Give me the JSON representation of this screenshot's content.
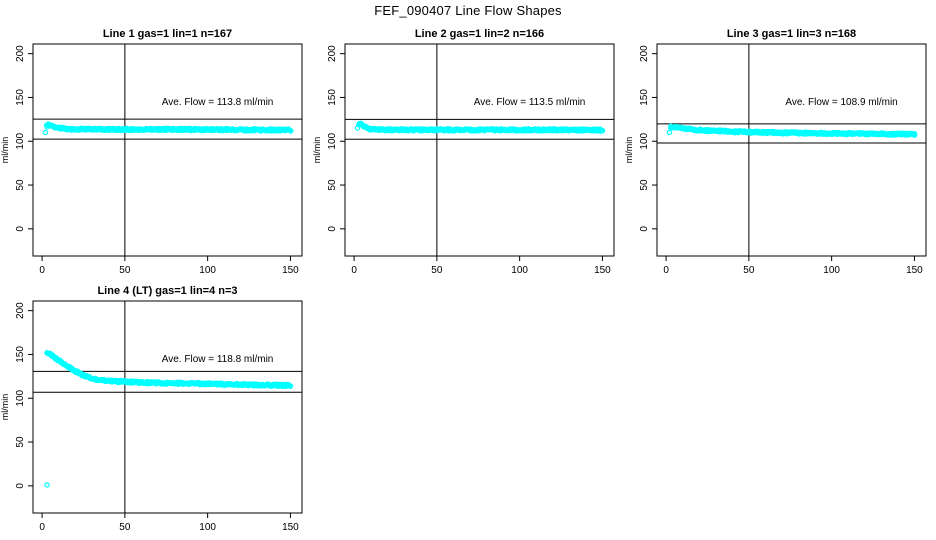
{
  "figure": {
    "title": "FEF_090407  Line Flow Shapes",
    "background": "#ffffff",
    "text_color": "#000000"
  },
  "chart_data": [
    {
      "type": "scatter",
      "title": "Line 1 gas=1 lin=1 n=167",
      "n": 167,
      "annotation": "Ave. Flow =  113.8  ml/min",
      "annotation_xy": [
        106,
        145
      ],
      "avg_flow_ml_min": 113.8,
      "xlabel": "",
      "ylabel": "ml/min",
      "x_ticks": [
        0,
        50,
        100,
        150
      ],
      "y_ticks": [
        0,
        50,
        100,
        150,
        200
      ],
      "xlim": [
        -5.5,
        157
      ],
      "ylim": [
        -31,
        211
      ],
      "grid": false,
      "vline_x": 50,
      "ref_lines_y": [
        125.2,
        102.4
      ],
      "point_color": "#00ffff",
      "line_color": "#000000",
      "profile": [
        [
          3,
          117.5
        ],
        [
          4,
          119
        ],
        [
          5,
          118.5
        ],
        [
          6,
          118
        ],
        [
          8,
          116
        ],
        [
          10,
          115
        ],
        [
          15,
          114
        ],
        [
          20,
          113.8
        ],
        [
          30,
          113.5
        ],
        [
          50,
          113.5
        ],
        [
          75,
          113.5
        ],
        [
          100,
          113.4
        ],
        [
          125,
          113
        ],
        [
          150,
          112.8
        ]
      ],
      "outliers": [
        [
          2,
          110
        ]
      ]
    },
    {
      "type": "scatter",
      "title": "Line 2 gas=1 lin=2 n=166",
      "n": 166,
      "annotation": "Ave. Flow =  113.5  ml/min",
      "annotation_xy": [
        106,
        145
      ],
      "avg_flow_ml_min": 113.5,
      "xlabel": "",
      "ylabel": "ml/min",
      "x_ticks": [
        0,
        50,
        100,
        150
      ],
      "y_ticks": [
        0,
        50,
        100,
        150,
        200
      ],
      "xlim": [
        -5.5,
        157
      ],
      "ylim": [
        -31,
        211
      ],
      "grid": false,
      "vline_x": 50,
      "ref_lines_y": [
        124.9,
        102.2
      ],
      "point_color": "#00ffff",
      "line_color": "#000000",
      "profile": [
        [
          3,
          119.5
        ],
        [
          4,
          119.8
        ],
        [
          5,
          118.5
        ],
        [
          6,
          117
        ],
        [
          8,
          115
        ],
        [
          10,
          114
        ],
        [
          12,
          113.5
        ],
        [
          15,
          113.2
        ],
        [
          20,
          113
        ],
        [
          30,
          113
        ],
        [
          50,
          113
        ],
        [
          75,
          113
        ],
        [
          100,
          113
        ],
        [
          125,
          113
        ],
        [
          150,
          112.8
        ]
      ],
      "outliers": [
        [
          2,
          115
        ]
      ]
    },
    {
      "type": "scatter",
      "title": "Line 3 gas=1 lin=3 n=168",
      "n": 168,
      "annotation": "Ave. Flow =  108.9  ml/min",
      "annotation_xy": [
        106,
        145
      ],
      "avg_flow_ml_min": 108.9,
      "xlabel": "",
      "ylabel": "ml/min",
      "x_ticks": [
        0,
        50,
        100,
        150
      ],
      "y_ticks": [
        0,
        50,
        100,
        150,
        200
      ],
      "xlim": [
        -5.5,
        157
      ],
      "ylim": [
        -31,
        211
      ],
      "grid": false,
      "vline_x": 50,
      "ref_lines_y": [
        119.8,
        98.0
      ],
      "point_color": "#00ffff",
      "line_color": "#000000",
      "profile": [
        [
          3,
          116.5
        ],
        [
          4,
          116.8
        ],
        [
          5,
          116
        ],
        [
          6,
          115.5
        ],
        [
          8,
          115
        ],
        [
          10,
          114.5
        ],
        [
          15,
          113.5
        ],
        [
          20,
          112.8
        ],
        [
          25,
          112.2
        ],
        [
          30,
          111.8
        ],
        [
          40,
          111
        ],
        [
          50,
          110.5
        ],
        [
          60,
          110
        ],
        [
          75,
          109.5
        ],
        [
          90,
          109.2
        ],
        [
          100,
          109
        ],
        [
          115,
          108.6
        ],
        [
          130,
          108.3
        ],
        [
          150,
          108
        ]
      ],
      "outliers": [
        [
          2,
          110
        ]
      ]
    },
    {
      "type": "scatter",
      "title": "Line 4 (LT) gas=1 lin=4 n=3",
      "n": 3,
      "annotation": "Ave. Flow =  118.8  ml/min",
      "annotation_xy": [
        106,
        145
      ],
      "avg_flow_ml_min": 118.8,
      "xlabel": "",
      "ylabel": "ml/min",
      "x_ticks": [
        0,
        50,
        100,
        150
      ],
      "y_ticks": [
        0,
        50,
        100,
        150,
        200
      ],
      "xlim": [
        -5.5,
        157
      ],
      "ylim": [
        -31,
        211
      ],
      "grid": false,
      "vline_x": 50,
      "ref_lines_y": [
        130.7,
        106.9
      ],
      "point_color": "#00ffff",
      "line_color": "#000000",
      "profile": [
        [
          3,
          152
        ],
        [
          4,
          151.5
        ],
        [
          5,
          150
        ],
        [
          6,
          149
        ],
        [
          8,
          146
        ],
        [
          10,
          143.5
        ],
        [
          12,
          141
        ],
        [
          15,
          137
        ],
        [
          18,
          133.5
        ],
        [
          20,
          131
        ],
        [
          25,
          126
        ],
        [
          30,
          122.5
        ],
        [
          35,
          120.8
        ],
        [
          40,
          119.8
        ],
        [
          45,
          119.2
        ],
        [
          50,
          118.8
        ],
        [
          60,
          118
        ],
        [
          75,
          117.3
        ],
        [
          90,
          116.8
        ],
        [
          105,
          116.2
        ],
        [
          120,
          115.6
        ],
        [
          135,
          115.1
        ],
        [
          150,
          114.6
        ]
      ],
      "outliers": [
        [
          3,
          1
        ]
      ]
    }
  ]
}
